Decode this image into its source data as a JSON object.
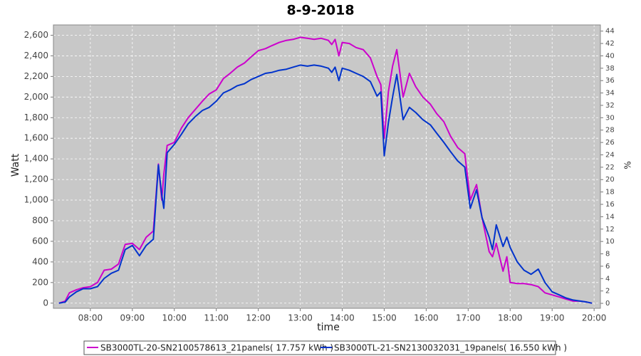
{
  "chart_data": {
    "type": "line",
    "title": "8-9-2018",
    "x_label": "time",
    "y_label": "Watt",
    "y2_label": "%",
    "x": [
      7.25,
      7.4,
      7.5,
      7.67,
      7.83,
      8.0,
      8.17,
      8.33,
      8.5,
      8.67,
      8.83,
      9.0,
      9.17,
      9.33,
      9.5,
      9.62,
      9.7,
      9.75,
      9.83,
      10.0,
      10.17,
      10.33,
      10.5,
      10.67,
      10.83,
      11.0,
      11.17,
      11.33,
      11.5,
      11.67,
      11.83,
      12.0,
      12.17,
      12.33,
      12.5,
      12.67,
      12.83,
      13.0,
      13.17,
      13.33,
      13.5,
      13.67,
      13.75,
      13.83,
      13.92,
      14.0,
      14.17,
      14.33,
      14.5,
      14.67,
      14.83,
      14.92,
      15.0,
      15.1,
      15.2,
      15.3,
      15.45,
      15.6,
      15.75,
      15.92,
      16.1,
      16.25,
      16.42,
      16.58,
      16.75,
      16.92,
      17.05,
      17.2,
      17.33,
      17.5,
      17.58,
      17.67,
      17.83,
      17.92,
      18.0,
      18.17,
      18.33,
      18.5,
      18.67,
      18.83,
      19.0,
      19.17,
      19.33,
      19.5,
      19.67,
      19.83,
      19.95
    ],
    "series": [
      {
        "name": "SB3000TL-20-SN2100578613_21panels( 17.757 kWh )",
        "color": "#cc00cc",
        "values": [
          0,
          20,
          100,
          130,
          150,
          160,
          200,
          320,
          330,
          380,
          570,
          580,
          520,
          640,
          700,
          1350,
          1000,
          1250,
          1530,
          1560,
          1700,
          1800,
          1880,
          1960,
          2030,
          2070,
          2180,
          2230,
          2290,
          2330,
          2390,
          2450,
          2470,
          2500,
          2530,
          2550,
          2560,
          2580,
          2570,
          2560,
          2570,
          2550,
          2510,
          2560,
          2400,
          2530,
          2520,
          2480,
          2460,
          2380,
          2200,
          2120,
          1600,
          2050,
          2300,
          2460,
          2000,
          2230,
          2100,
          2000,
          1930,
          1840,
          1760,
          1620,
          1510,
          1450,
          1000,
          1150,
          830,
          500,
          450,
          580,
          310,
          450,
          200,
          190,
          190,
          180,
          160,
          100,
          80,
          60,
          40,
          20,
          20,
          10,
          0
        ]
      },
      {
        "name": "SB3000TL-21-SN2130032031_19panels( 16.550 kWh )",
        "color": "#0033cc",
        "values": [
          0,
          10,
          60,
          110,
          140,
          140,
          160,
          240,
          290,
          320,
          520,
          560,
          460,
          560,
          620,
          1340,
          1050,
          920,
          1460,
          1540,
          1640,
          1740,
          1810,
          1870,
          1900,
          1960,
          2040,
          2070,
          2110,
          2130,
          2170,
          2200,
          2230,
          2240,
          2260,
          2270,
          2290,
          2310,
          2300,
          2310,
          2300,
          2280,
          2240,
          2290,
          2160,
          2280,
          2260,
          2230,
          2200,
          2150,
          2010,
          2050,
          1430,
          1750,
          2000,
          2220,
          1780,
          1900,
          1850,
          1780,
          1730,
          1650,
          1560,
          1470,
          1380,
          1320,
          920,
          1100,
          830,
          640,
          520,
          760,
          550,
          640,
          540,
          400,
          320,
          280,
          330,
          200,
          110,
          80,
          50,
          30,
          20,
          10,
          0
        ]
      }
    ],
    "xlim": [
      7.12,
      20.15
    ],
    "xticks": [
      {
        "value": 8,
        "label": "08:00"
      },
      {
        "value": 9,
        "label": "09:00"
      },
      {
        "value": 10,
        "label": "10:00"
      },
      {
        "value": 11,
        "label": "11:00"
      },
      {
        "value": 12,
        "label": "12:00"
      },
      {
        "value": 13,
        "label": "13:00"
      },
      {
        "value": 14,
        "label": "14:00"
      },
      {
        "value": 15,
        "label": "15:00"
      },
      {
        "value": 16,
        "label": "16:00"
      },
      {
        "value": 17,
        "label": "17:00"
      },
      {
        "value": 18,
        "label": "18:00"
      },
      {
        "value": 19,
        "label": "19:00"
      },
      {
        "value": 20,
        "label": "20:00"
      }
    ],
    "ylim": [
      -50,
      2700
    ],
    "yticks": [
      0,
      200,
      400,
      600,
      800,
      {
        "value": 1000,
        "label": "1,000"
      },
      {
        "value": 1200,
        "label": "1,200"
      },
      {
        "value": 1400,
        "label": "1,400"
      },
      {
        "value": 1600,
        "label": "1,600"
      },
      {
        "value": 1800,
        "label": "1,800"
      },
      {
        "value": 2000,
        "label": "2,000"
      },
      {
        "value": 2200,
        "label": "2,200"
      },
      {
        "value": 2400,
        "label": "2,400"
      },
      {
        "value": 2600,
        "label": "2,600"
      }
    ],
    "y2lim": [
      -0.8,
      45
    ],
    "y2ticks": [
      0,
      2,
      4,
      6,
      8,
      10,
      12,
      14,
      16,
      18,
      20,
      22,
      24,
      26,
      28,
      30,
      32,
      34,
      36,
      38,
      40,
      42,
      44
    ],
    "grid": true,
    "plot_background": "#c8c8c8"
  }
}
